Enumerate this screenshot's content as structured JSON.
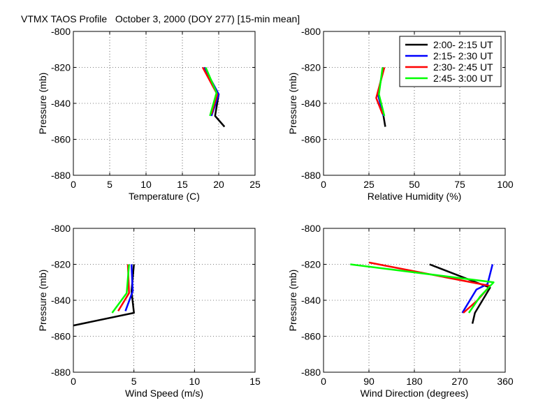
{
  "figure_title": "VTMX TAOS Profile   October 3, 2000 (DOY 277) [15-min mean]",
  "legend": {
    "entries": [
      "2:00- 2:15 UT",
      "2:15- 2:30 UT",
      "2:30- 2:45 UT",
      "2:45- 3:00 UT"
    ],
    "colors": [
      "#000000",
      "#0000ff",
      "#ff0000",
      "#00ff00"
    ]
  },
  "chart_data": [
    {
      "type": "line",
      "xlabel": "Temperature (C)",
      "ylabel": "Pressure (mb)",
      "xlim": [
        0,
        25
      ],
      "ylim": [
        -880,
        -800
      ],
      "xticks": [
        0,
        5,
        10,
        15,
        20,
        25
      ],
      "yticks": [
        -800,
        -820,
        -840,
        -860,
        -880
      ],
      "grid": true,
      "series": [
        {
          "name": "2:00- 2:15 UT",
          "color": "#000000",
          "points": [
            [
              18,
              -820
            ],
            [
              20,
              -835
            ],
            [
              19.5,
              -847
            ],
            [
              20.8,
              -853
            ]
          ]
        },
        {
          "name": "2:15- 2:30 UT",
          "color": "#0000ff",
          "points": [
            [
              18,
              -820
            ],
            [
              20,
              -835
            ],
            [
              19,
              -847
            ]
          ]
        },
        {
          "name": "2:30- 2:45 UT",
          "color": "#ff0000",
          "points": [
            [
              17.8,
              -820
            ],
            [
              19.8,
              -835
            ],
            [
              19,
              -846
            ]
          ]
        },
        {
          "name": "2:45- 3:00 UT",
          "color": "#00ff00",
          "points": [
            [
              18.2,
              -820
            ],
            [
              19.7,
              -834
            ],
            [
              18.8,
              -847
            ]
          ]
        }
      ]
    },
    {
      "type": "line",
      "xlabel": "Relative Humidity (%)",
      "ylabel": "Pressure (mb)",
      "xlim": [
        0,
        100
      ],
      "ylim": [
        -880,
        -800
      ],
      "xticks": [
        0,
        25,
        50,
        75,
        100
      ],
      "yticks": [
        -800,
        -820,
        -840,
        -860,
        -880
      ],
      "grid": true,
      "series": [
        {
          "name": "2:00- 2:15 UT",
          "color": "#000000",
          "points": [
            [
              33,
              -820
            ],
            [
              30,
              -835
            ],
            [
              33,
              -847
            ],
            [
              34,
              -853
            ]
          ]
        },
        {
          "name": "2:15- 2:30 UT",
          "color": "#0000ff",
          "points": [
            [
              33,
              -820
            ],
            [
              30,
              -835
            ],
            [
              33,
              -847
            ]
          ]
        },
        {
          "name": "2:30- 2:45 UT",
          "color": "#ff0000",
          "points": [
            [
              33.5,
              -820
            ],
            [
              29,
              -837
            ],
            [
              32.5,
              -846
            ]
          ]
        },
        {
          "name": "2:45- 3:00 UT",
          "color": "#00ff00",
          "points": [
            [
              32.5,
              -820
            ],
            [
              30.5,
              -835
            ],
            [
              33.5,
              -847
            ]
          ]
        }
      ]
    },
    {
      "type": "line",
      "xlabel": "Wind Speed (m/s)",
      "ylabel": "Pressure (mb)",
      "xlim": [
        0,
        15
      ],
      "ylim": [
        -880,
        -800
      ],
      "xticks": [
        0,
        5,
        10,
        15
      ],
      "yticks": [
        -800,
        -820,
        -840,
        -860,
        -880
      ],
      "grid": true,
      "series": [
        {
          "name": "2:00- 2:15 UT",
          "color": "#000000",
          "points": [
            [
              5,
              -820
            ],
            [
              4.8,
              -835
            ],
            [
              5,
              -847
            ],
            [
              0,
              -854
            ]
          ]
        },
        {
          "name": "2:15- 2:30 UT",
          "color": "#0000ff",
          "points": [
            [
              4.8,
              -820
            ],
            [
              4.9,
              -835
            ],
            [
              4.3,
              -846
            ]
          ]
        },
        {
          "name": "2:30- 2:45 UT",
          "color": "#ff0000",
          "points": [
            [
              4.5,
              -820
            ],
            [
              4.6,
              -836
            ],
            [
              3.7,
              -846
            ]
          ]
        },
        {
          "name": "2:45- 3:00 UT",
          "color": "#00ff00",
          "points": [
            [
              4.6,
              -820
            ],
            [
              4.4,
              -836
            ],
            [
              3.2,
              -847
            ]
          ]
        }
      ]
    },
    {
      "type": "line",
      "xlabel": "Wind Direction (degrees)",
      "ylabel": "Pressure (mb)",
      "xlim": [
        0,
        360
      ],
      "ylim": [
        -880,
        -800
      ],
      "xticks": [
        0,
        90,
        180,
        270,
        360
      ],
      "yticks": [
        -800,
        -820,
        -840,
        -860,
        -880
      ],
      "grid": true,
      "series": [
        {
          "name": "2:00- 2:15 UT",
          "color": "#000000",
          "points": [
            [
              210,
              -820
            ],
            [
              330,
              -833
            ],
            [
              300,
              -847
            ],
            [
              295,
              -853
            ]
          ]
        },
        {
          "name": "2:15- 2:30 UT",
          "color": "#0000ff",
          "points": [
            [
              335,
              -820
            ],
            [
              325,
              -831
            ],
            [
              303,
              -834
            ],
            [
              275,
              -847
            ]
          ]
        },
        {
          "name": "2:30- 2:45 UT",
          "color": "#ff0000",
          "points": [
            [
              90,
              -819
            ],
            [
              330,
              -832
            ],
            [
              305,
              -840
            ],
            [
              277,
              -847
            ]
          ]
        },
        {
          "name": "2:45- 3:00 UT",
          "color": "#00ff00",
          "points": [
            [
              53,
              -820
            ],
            [
              337,
              -830
            ],
            [
              310,
              -838
            ],
            [
              288,
              -847
            ]
          ]
        }
      ]
    }
  ]
}
